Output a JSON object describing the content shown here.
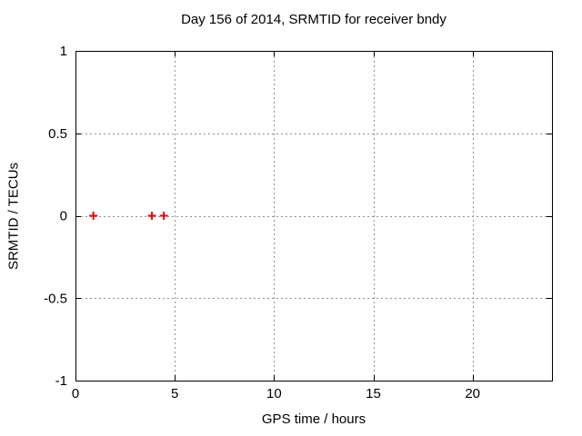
{
  "chart_data": {
    "type": "scatter",
    "title": "Day 156 of 2014, SRMTID for receiver bndy",
    "xlabel": "GPS time / hours",
    "ylabel": "SRMTID / TECUs",
    "xlim": [
      0,
      24
    ],
    "ylim": [
      -1,
      1
    ],
    "xticks": [
      0,
      5,
      10,
      15,
      20
    ],
    "yticks": [
      -1,
      -0.5,
      0,
      0.5,
      1
    ],
    "grid": true,
    "legend": "none",
    "series": [
      {
        "name": "SRMTID",
        "marker": "plus",
        "color": "#ff0000",
        "points": [
          [
            0.9,
            0
          ],
          [
            3.85,
            0
          ],
          [
            4.45,
            0
          ]
        ]
      }
    ],
    "colors": {
      "background": "#ffffff",
      "border": "#000000",
      "grid": "#909090",
      "text": "#000000"
    }
  }
}
